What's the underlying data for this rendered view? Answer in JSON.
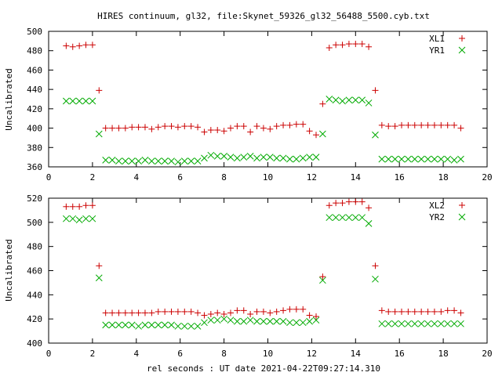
{
  "page": {
    "title": "HIRES continuum, gl32, file:Skynet_59326_gl32_56488_5500.cyb.txt",
    "xlabel": "rel seconds : UT date 2021-04-22T09:27:14.310"
  },
  "chart_data": [
    {
      "type": "scatter",
      "ylabel": "Uncalibrated",
      "xlim": [
        0,
        20
      ],
      "ylim": [
        360,
        500
      ],
      "xticks": [
        0,
        2,
        4,
        6,
        8,
        10,
        12,
        14,
        16,
        18,
        20
      ],
      "yticks": [
        360,
        380,
        400,
        420,
        440,
        460,
        480,
        500
      ],
      "legend": "top-right",
      "series": [
        {
          "name": "XL1",
          "marker": "plus",
          "color": "#cc0000",
          "x": [
            0.8,
            1.1,
            1.4,
            1.7,
            2.0,
            2.3,
            2.6,
            2.9,
            3.2,
            3.5,
            3.8,
            4.1,
            4.4,
            4.7,
            5.0,
            5.3,
            5.6,
            5.9,
            6.2,
            6.5,
            6.8,
            7.1,
            7.4,
            7.7,
            8.0,
            8.3,
            8.6,
            8.9,
            9.2,
            9.5,
            9.8,
            10.1,
            10.4,
            10.7,
            11.0,
            11.3,
            11.6,
            11.9,
            12.2,
            12.5,
            12.8,
            13.1,
            13.4,
            13.7,
            14.0,
            14.3,
            14.6,
            14.9,
            15.2,
            15.5,
            15.8,
            16.1,
            16.4,
            16.7,
            17.0,
            17.3,
            17.6,
            17.9,
            18.2,
            18.5,
            18.8
          ],
          "y": [
            485,
            484,
            485,
            486,
            486,
            439,
            400,
            400,
            400,
            400,
            401,
            401,
            401,
            399,
            401,
            402,
            402,
            401,
            402,
            402,
            401,
            396,
            398,
            398,
            397,
            400,
            402,
            402,
            396,
            402,
            400,
            399,
            402,
            403,
            403,
            404,
            404,
            397,
            393,
            425,
            483,
            486,
            486,
            487,
            487,
            487,
            484,
            439,
            403,
            402,
            402,
            403,
            403,
            403,
            403,
            403,
            403,
            403,
            403,
            403,
            400
          ]
        },
        {
          "name": "YR1",
          "marker": "cross",
          "color": "#00aa00",
          "x": [
            0.8,
            1.1,
            1.4,
            1.7,
            2.0,
            2.3,
            2.6,
            2.9,
            3.2,
            3.5,
            3.8,
            4.1,
            4.4,
            4.7,
            5.0,
            5.3,
            5.6,
            5.9,
            6.2,
            6.5,
            6.8,
            7.1,
            7.4,
            7.7,
            8.0,
            8.3,
            8.6,
            8.9,
            9.2,
            9.5,
            9.8,
            10.1,
            10.4,
            10.7,
            11.0,
            11.3,
            11.6,
            11.9,
            12.2,
            12.5,
            12.8,
            13.1,
            13.4,
            13.7,
            14.0,
            14.3,
            14.6,
            14.9,
            15.2,
            15.5,
            15.8,
            16.1,
            16.4,
            16.7,
            17.0,
            17.3,
            17.6,
            17.9,
            18.2,
            18.5,
            18.8
          ],
          "y": [
            428,
            428,
            428,
            428,
            428,
            394,
            367,
            367,
            366,
            366,
            366,
            366,
            367,
            366,
            366,
            366,
            366,
            365,
            366,
            366,
            366,
            369,
            372,
            371,
            371,
            370,
            369,
            370,
            371,
            369,
            370,
            370,
            369,
            369,
            368,
            368,
            369,
            370,
            370,
            394,
            430,
            429,
            428,
            429,
            429,
            429,
            426,
            393,
            368,
            368,
            368,
            368,
            368,
            368,
            368,
            368,
            368,
            368,
            368,
            367,
            368
          ]
        }
      ]
    },
    {
      "type": "scatter",
      "ylabel": "Uncalibrated",
      "xlim": [
        0,
        20
      ],
      "ylim": [
        400,
        520
      ],
      "xticks": [
        0,
        2,
        4,
        6,
        8,
        10,
        12,
        14,
        16,
        18,
        20
      ],
      "yticks": [
        400,
        420,
        440,
        460,
        480,
        500,
        520
      ],
      "legend": "top-right",
      "series": [
        {
          "name": "XL2",
          "marker": "plus",
          "color": "#cc0000",
          "x": [
            0.8,
            1.1,
            1.4,
            1.7,
            2.0,
            2.3,
            2.6,
            2.9,
            3.2,
            3.5,
            3.8,
            4.1,
            4.4,
            4.7,
            5.0,
            5.3,
            5.6,
            5.9,
            6.2,
            6.5,
            6.8,
            7.1,
            7.4,
            7.7,
            8.0,
            8.3,
            8.6,
            8.9,
            9.2,
            9.5,
            9.8,
            10.1,
            10.4,
            10.7,
            11.0,
            11.3,
            11.6,
            11.9,
            12.2,
            12.5,
            12.8,
            13.1,
            13.4,
            13.7,
            14.0,
            14.3,
            14.6,
            14.9,
            15.2,
            15.5,
            15.8,
            16.1,
            16.4,
            16.7,
            17.0,
            17.3,
            17.6,
            17.9,
            18.2,
            18.5,
            18.8
          ],
          "y": [
            513,
            513,
            513,
            514,
            514,
            464,
            425,
            425,
            425,
            425,
            425,
            425,
            425,
            425,
            426,
            426,
            426,
            426,
            426,
            426,
            425,
            423,
            424,
            425,
            424,
            425,
            427,
            427,
            424,
            426,
            426,
            425,
            426,
            427,
            428,
            428,
            428,
            423,
            422,
            455,
            514,
            516,
            516,
            517,
            517,
            517,
            512,
            464,
            427,
            426,
            426,
            426,
            426,
            426,
            426,
            426,
            426,
            426,
            427,
            427,
            425
          ]
        },
        {
          "name": "YR2",
          "marker": "cross",
          "color": "#00aa00",
          "x": [
            0.8,
            1.1,
            1.4,
            1.7,
            2.0,
            2.3,
            2.6,
            2.9,
            3.2,
            3.5,
            3.8,
            4.1,
            4.4,
            4.7,
            5.0,
            5.3,
            5.6,
            5.9,
            6.2,
            6.5,
            6.8,
            7.1,
            7.4,
            7.7,
            8.0,
            8.3,
            8.6,
            8.9,
            9.2,
            9.5,
            9.8,
            10.1,
            10.4,
            10.7,
            11.0,
            11.3,
            11.6,
            11.9,
            12.2,
            12.5,
            12.8,
            13.1,
            13.4,
            13.7,
            14.0,
            14.3,
            14.6,
            14.9,
            15.2,
            15.5,
            15.8,
            16.1,
            16.4,
            16.7,
            17.0,
            17.3,
            17.6,
            17.9,
            18.2,
            18.5,
            18.8
          ],
          "y": [
            503,
            503,
            502,
            503,
            503,
            454,
            415,
            415,
            415,
            415,
            415,
            414,
            415,
            415,
            415,
            415,
            415,
            414,
            414,
            414,
            414,
            417,
            419,
            419,
            420,
            419,
            418,
            418,
            419,
            418,
            418,
            418,
            418,
            418,
            417,
            417,
            417,
            418,
            419,
            452,
            504,
            504,
            504,
            504,
            504,
            504,
            499,
            453,
            416,
            416,
            416,
            416,
            416,
            416,
            416,
            416,
            416,
            416,
            416,
            416,
            416
          ]
        }
      ]
    }
  ]
}
